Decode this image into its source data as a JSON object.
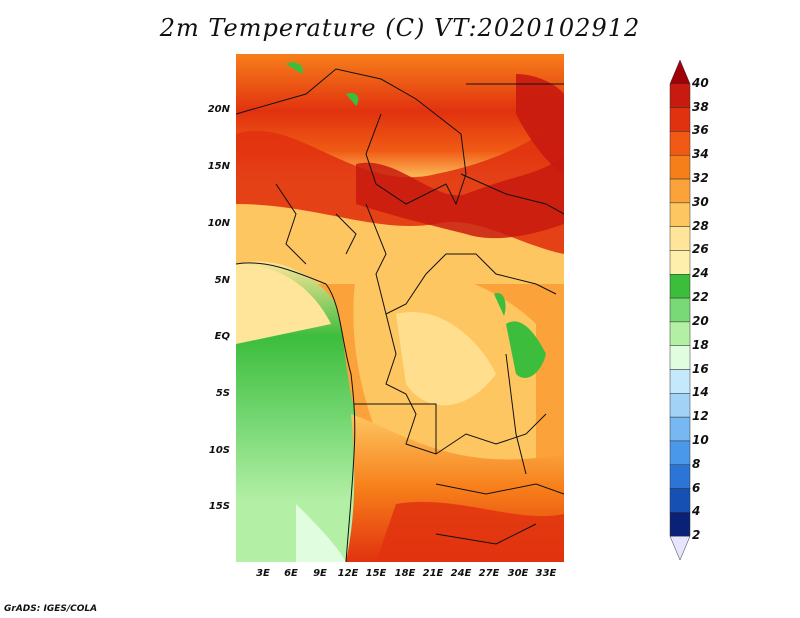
{
  "title": "2m Temperature (C) VT:2020102912",
  "credit": "GrADS: IGES/COLA",
  "lat_labels": [
    "20N",
    "15N",
    "10N",
    "5N",
    "EQ",
    "5S",
    "10S",
    "15S"
  ],
  "lon_labels": [
    "3E",
    "6E",
    "9E",
    "12E",
    "15E",
    "18E",
    "21E",
    "24E",
    "27E",
    "30E",
    "33E"
  ],
  "colorbar": {
    "ticks": [
      "40",
      "38",
      "36",
      "34",
      "32",
      "30",
      "28",
      "26",
      "24",
      "22",
      "20",
      "18",
      "16",
      "14",
      "12",
      "10",
      "8",
      "6",
      "4",
      "2"
    ],
    "colors": [
      "#a0000a",
      "#c81a0f",
      "#e1320f",
      "#f05a14",
      "#f77f1a",
      "#fba33a",
      "#fdc661",
      "#ffe59a",
      "#ffefac",
      "#3cbd3c",
      "#7ad977",
      "#b4efa6",
      "#e1fde0",
      "#c6e8fb",
      "#a3d2f7",
      "#77b8f2",
      "#4a98ea",
      "#2c74d6",
      "#1550b2",
      "#0a2178",
      "#e6e6ff"
    ]
  }
}
